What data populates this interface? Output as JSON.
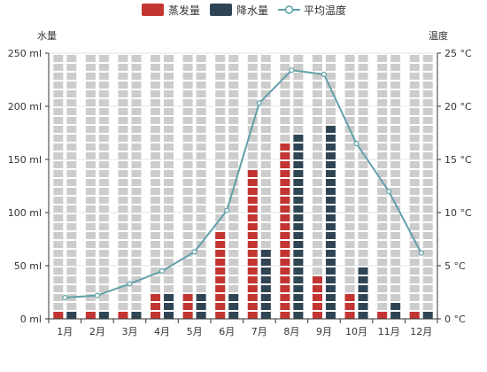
{
  "legend": {
    "evaporation_label": "蒸发量",
    "precipitation_label": "降水量",
    "temperature_label": "平均温度"
  },
  "colors": {
    "evaporation": "#c23531",
    "precipitation": "#2f4554",
    "temperature": "#61a0a8",
    "background_bar": "#cccccc"
  },
  "chart_data": {
    "type": "bar",
    "categories": [
      "1月",
      "2月",
      "3月",
      "4月",
      "5月",
      "6月",
      "7月",
      "8月",
      "9月",
      "10月",
      "11月",
      "12月"
    ],
    "series": [
      {
        "name": "蒸发量",
        "type": "bar",
        "axis": "left",
        "values": [
          8,
          8,
          8,
          30,
          30,
          83,
          147,
          167,
          41,
          30,
          8,
          8
        ]
      },
      {
        "name": "降水量",
        "type": "bar",
        "axis": "left",
        "values": [
          8,
          8,
          8,
          30,
          30,
          30,
          72,
          177,
          188,
          52,
          19,
          8
        ]
      },
      {
        "name": "平均温度",
        "type": "line",
        "axis": "right",
        "values": [
          2.0,
          2.2,
          3.3,
          4.5,
          6.3,
          10.2,
          20.3,
          23.4,
          23.0,
          16.5,
          12.0,
          6.2
        ]
      }
    ],
    "y_left": {
      "label": "水量",
      "min": 0,
      "max": 250,
      "interval": 50,
      "unit": "ml",
      "ticks": [
        "0 ml",
        "50 ml",
        "100 ml",
        "150 ml",
        "200 ml",
        "250 ml"
      ]
    },
    "y_right": {
      "label": "温度",
      "min": 0,
      "max": 25,
      "interval": 5,
      "unit": "°C",
      "ticks": [
        "0 °C",
        "5 °C",
        "10 °C",
        "15 °C",
        "20 °C",
        "25 °C"
      ]
    },
    "grid": true,
    "legend_position": "top-center",
    "bar_style": "pictorial-segmented"
  }
}
